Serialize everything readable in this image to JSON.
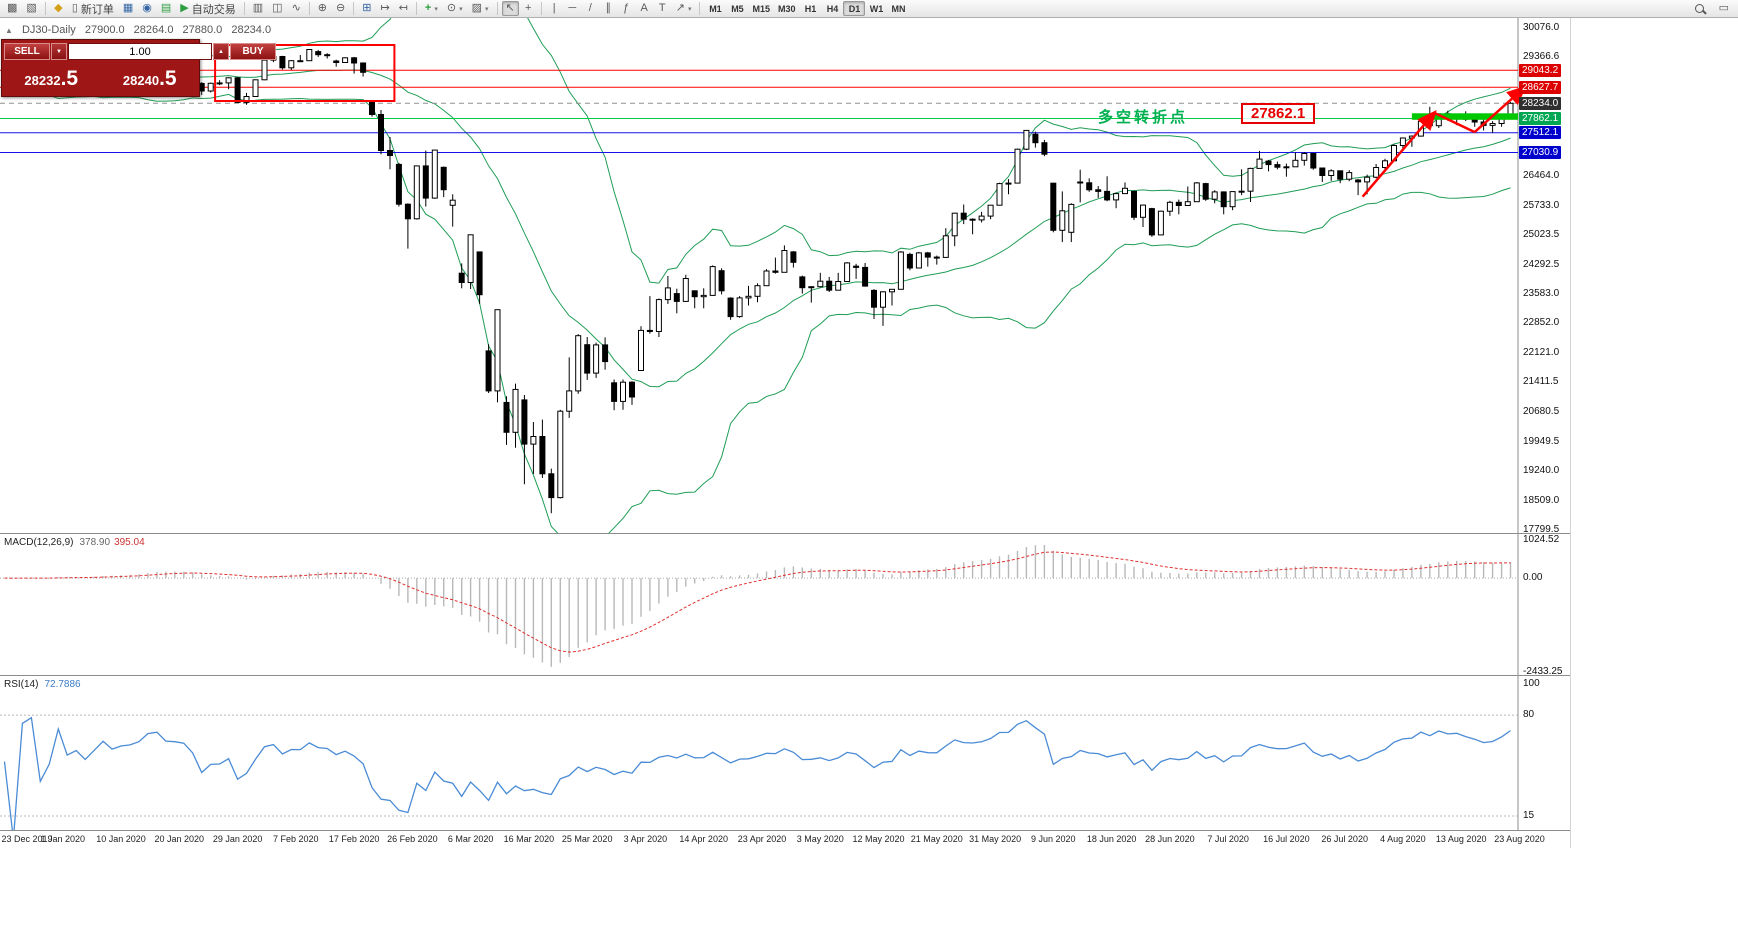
{
  "toolbar": {
    "new_order_label": "新订单",
    "auto_trading_label": "自动交易",
    "timeframes": [
      "M1",
      "M5",
      "M15",
      "M30",
      "H1",
      "H4",
      "D1",
      "W1",
      "MN"
    ],
    "active_timeframe": "D1"
  },
  "chart_header": {
    "collapse_glyph": "▲",
    "symbol": "DJ30-Daily",
    "open": "27900.0",
    "high": "28264.0",
    "low": "27880.0",
    "close": "28234.0"
  },
  "trade_widget": {
    "sell_label": "SELL",
    "buy_label": "BUY",
    "lot_value": "1.00",
    "sell_price_main": "28232",
    "sell_price_big": ".5",
    "buy_price_main": "28240",
    "buy_price_big": ".5"
  },
  "annotations": {
    "turning_point_label": "多空转折点",
    "turning_point_price": "27862.1"
  },
  "chart_data": [
    {
      "type": "candlestick",
      "symbol": "DJ30",
      "period": "Daily",
      "ylim": [
        17799.5,
        30076.0
      ],
      "y_ticks": [
        30076.0,
        29366.6,
        26464.0,
        25733.0,
        25023.5,
        24292.5,
        23583.0,
        22852.0,
        22121.0,
        21411.5,
        20680.5,
        19949.5,
        19240.0,
        18509.0,
        17799.5
      ],
      "x_labels": [
        "23 Dec 2019",
        "1 Jan 2020",
        "10 Jan 2020",
        "20 Jan 2020",
        "29 Jan 2020",
        "7 Feb 2020",
        "17 Feb 2020",
        "26 Feb 2020",
        "6 Mar 2020",
        "16 Mar 2020",
        "25 Mar 2020",
        "3 Apr 2020",
        "14 Apr 2020",
        "23 Apr 2020",
        "3 May 2020",
        "12 May 2020",
        "21 May 2020",
        "31 May 2020",
        "9 Jun 2020",
        "18 Jun 2020",
        "28 Jun 2020",
        "7 Jul 2020",
        "16 Jul 2020",
        "26 Jul 2020",
        "4 Aug 2020",
        "13 Aug 2020",
        "23 Aug 2020"
      ],
      "candles": [
        [
          28510,
          28580,
          28470,
          28551
        ],
        [
          28551,
          28575,
          28468,
          28515
        ],
        [
          28515,
          28640,
          28500,
          28621
        ],
        [
          28621,
          28700,
          28590,
          28645
        ],
        [
          28645,
          28662,
          28428,
          28462
        ],
        [
          28462,
          28562,
          28420,
          28538
        ],
        [
          28538,
          28890,
          28530,
          28869
        ],
        [
          28650,
          28720,
          28560,
          28635
        ],
        [
          28635,
          28712,
          28420,
          28703
        ],
        [
          28703,
          28730,
          28550,
          28584
        ],
        [
          28584,
          28770,
          28440,
          28745
        ],
        [
          28745,
          28980,
          28740,
          28957
        ],
        [
          28957,
          29005,
          28790,
          28824
        ],
        [
          28824,
          28920,
          28800,
          28907
        ],
        [
          28907,
          29010,
          28850,
          28939
        ],
        [
          28939,
          29060,
          28890,
          29030
        ],
        [
          29030,
          29300,
          29020,
          29297
        ],
        [
          29297,
          29380,
          29250,
          29348
        ],
        [
          29280,
          29320,
          29150,
          29196
        ],
        [
          29196,
          29280,
          29130,
          29186
        ],
        [
          29186,
          29230,
          29000,
          29160
        ],
        [
          29160,
          29230,
          28840,
          28990
        ],
        [
          28720,
          28750,
          28440,
          28536
        ],
        [
          28536,
          28740,
          28500,
          28723
        ],
        [
          28723,
          28800,
          28680,
          28734
        ],
        [
          28734,
          28870,
          28580,
          28859
        ],
        [
          28859,
          28880,
          28250,
          28256
        ],
        [
          28256,
          28490,
          28200,
          28400
        ],
        [
          28400,
          28820,
          28395,
          28808
        ],
        [
          28808,
          29310,
          28800,
          29291
        ],
        [
          29291,
          29390,
          29240,
          29380
        ],
        [
          29380,
          29395,
          29060,
          29103
        ],
        [
          29103,
          29290,
          29050,
          29277
        ],
        [
          29277,
          29415,
          29250,
          29276
        ],
        [
          29276,
          29560,
          29270,
          29551
        ],
        [
          29500,
          29540,
          29370,
          29423
        ],
        [
          29423,
          29460,
          29330,
          29398
        ],
        [
          29270,
          29300,
          29130,
          29232
        ],
        [
          29232,
          29360,
          29220,
          29348
        ],
        [
          29348,
          29370,
          28960,
          29220
        ],
        [
          29220,
          29235,
          28890,
          28992
        ],
        [
          28260,
          28285,
          27910,
          27961
        ],
        [
          27961,
          28070,
          26990,
          27081
        ],
        [
          27081,
          27410,
          26620,
          26958
        ],
        [
          26740,
          26780,
          25710,
          25767
        ],
        [
          25767,
          25790,
          24680,
          25409
        ],
        [
          25409,
          26710,
          25390,
          26703
        ],
        [
          26703,
          27080,
          25710,
          25917
        ],
        [
          25917,
          27100,
          25900,
          27091
        ],
        [
          26670,
          26690,
          25940,
          26121
        ],
        [
          25740,
          26010,
          25220,
          25865
        ],
        [
          24080,
          24320,
          23710,
          23851
        ],
        [
          23851,
          25020,
          23690,
          25018
        ],
        [
          24600,
          24610,
          23330,
          23553
        ],
        [
          22180,
          22340,
          21150,
          21201
        ],
        [
          21201,
          23190,
          20920,
          23186
        ],
        [
          20920,
          21070,
          19880,
          20188
        ],
        [
          20188,
          21380,
          19810,
          21237
        ],
        [
          20980,
          21100,
          18920,
          19899
        ],
        [
          19899,
          20440,
          19170,
          20087
        ],
        [
          20087,
          20500,
          19070,
          19174
        ],
        [
          19174,
          19300,
          18210,
          18592
        ],
        [
          18592,
          20740,
          18570,
          20705
        ],
        [
          20705,
          22020,
          20540,
          21200
        ],
        [
          21200,
          22590,
          21130,
          22552
        ],
        [
          22330,
          22520,
          21470,
          21637
        ],
        [
          21637,
          22380,
          21520,
          22327
        ],
        [
          22327,
          22510,
          21720,
          21917
        ],
        [
          21400,
          21480,
          20730,
          20944
        ],
        [
          20944,
          21480,
          20740,
          21413
        ],
        [
          21413,
          21440,
          20860,
          21053
        ],
        [
          21700,
          22780,
          21690,
          22680
        ],
        [
          22680,
          23520,
          22600,
          22654
        ],
        [
          22654,
          23460,
          22520,
          23434
        ],
        [
          23434,
          24010,
          23330,
          23719
        ],
        [
          23580,
          23700,
          23100,
          23390
        ],
        [
          23390,
          24040,
          23380,
          23950
        ],
        [
          23650,
          23660,
          23220,
          23504
        ],
        [
          23504,
          23710,
          23220,
          23537
        ],
        [
          23537,
          24270,
          23530,
          24242
        ],
        [
          24140,
          24200,
          23560,
          23650
        ],
        [
          23470,
          23490,
          22940,
          23018
        ],
        [
          23018,
          23520,
          22990,
          23476
        ],
        [
          23476,
          23770,
          23290,
          23515
        ],
        [
          23515,
          23830,
          23370,
          23775
        ],
        [
          23775,
          24180,
          23770,
          24134
        ],
        [
          24134,
          24460,
          24070,
          24102
        ],
        [
          24102,
          24760,
          24100,
          24634
        ],
        [
          24600,
          24620,
          24220,
          24346
        ],
        [
          23990,
          24020,
          23580,
          23724
        ],
        [
          23724,
          23760,
          23360,
          23750
        ],
        [
          23750,
          24090,
          23730,
          23883
        ],
        [
          23883,
          23990,
          23620,
          23665
        ],
        [
          23665,
          24090,
          23660,
          23876
        ],
        [
          23876,
          24350,
          23870,
          24331
        ],
        [
          24250,
          24310,
          23940,
          24222
        ],
        [
          24222,
          24330,
          23750,
          23765
        ],
        [
          23660,
          23690,
          22960,
          23248
        ],
        [
          23248,
          23640,
          22790,
          23625
        ],
        [
          23625,
          23690,
          23290,
          23685
        ],
        [
          23685,
          24620,
          23680,
          24597
        ],
        [
          24540,
          24580,
          24150,
          24207
        ],
        [
          24207,
          24600,
          24200,
          24576
        ],
        [
          24576,
          24600,
          24240,
          24474
        ],
        [
          24474,
          24510,
          24290,
          24465
        ],
        [
          24465,
          25180,
          24460,
          24995
        ],
        [
          24995,
          25560,
          24740,
          25548
        ],
        [
          25548,
          25760,
          25280,
          25401
        ],
        [
          25401,
          25420,
          25030,
          25383
        ],
        [
          25383,
          25580,
          25320,
          25475
        ],
        [
          25475,
          25750,
          25400,
          25743
        ],
        [
          25743,
          26290,
          25740,
          26270
        ],
        [
          26270,
          26380,
          26010,
          26282
        ],
        [
          26282,
          27130,
          26280,
          27111
        ],
        [
          27111,
          27580,
          27090,
          27572
        ],
        [
          27480,
          27540,
          27150,
          27272
        ],
        [
          27272,
          27340,
          26940,
          26990
        ],
        [
          26280,
          26290,
          25080,
          25128
        ],
        [
          25128,
          26080,
          24840,
          25605
        ],
        [
          25080,
          25790,
          24840,
          25763
        ],
        [
          26310,
          26610,
          25810,
          26290
        ],
        [
          26290,
          26400,
          26070,
          26120
        ],
        [
          26120,
          26210,
          25920,
          26080
        ],
        [
          26080,
          26450,
          25840,
          25871
        ],
        [
          25871,
          26050,
          25670,
          26025
        ],
        [
          26025,
          26300,
          26020,
          26156
        ],
        [
          26080,
          26100,
          25380,
          25446
        ],
        [
          25446,
          25760,
          25210,
          25746
        ],
        [
          25660,
          25680,
          24970,
          25016
        ],
        [
          25016,
          25610,
          25010,
          25596
        ],
        [
          25596,
          25850,
          25480,
          25813
        ],
        [
          25813,
          25880,
          25520,
          25735
        ],
        [
          25735,
          26200,
          25730,
          25827
        ],
        [
          25827,
          26310,
          25820,
          26287
        ],
        [
          26270,
          26290,
          25850,
          25890
        ],
        [
          25890,
          26110,
          25790,
          26067
        ],
        [
          26067,
          26080,
          25520,
          25706
        ],
        [
          25706,
          26080,
          25620,
          26075
        ],
        [
          26075,
          26620,
          25990,
          26086
        ],
        [
          26086,
          26660,
          25820,
          26643
        ],
        [
          26643,
          27070,
          26640,
          26870
        ],
        [
          26820,
          26850,
          26570,
          26735
        ],
        [
          26735,
          26810,
          26620,
          26672
        ],
        [
          26672,
          26760,
          26440,
          26681
        ],
        [
          26681,
          27030,
          26680,
          26840
        ],
        [
          26840,
          27040,
          26710,
          27006
        ],
        [
          27006,
          27020,
          26610,
          26652
        ],
        [
          26652,
          26660,
          26310,
          26470
        ],
        [
          26470,
          26620,
          26340,
          26584
        ],
        [
          26584,
          26590,
          26280,
          26379
        ],
        [
          26379,
          26600,
          26330,
          26539
        ],
        [
          26360,
          26380,
          25990,
          26313
        ],
        [
          26313,
          26490,
          26010,
          26428
        ],
        [
          26428,
          26750,
          26400,
          26664
        ],
        [
          26664,
          26880,
          26560,
          26828
        ],
        [
          26828,
          27230,
          26820,
          27202
        ],
        [
          27202,
          27400,
          27090,
          27387
        ],
        [
          27387,
          27450,
          27170,
          27433
        ],
        [
          27433,
          27800,
          27420,
          27791
        ],
        [
          27791,
          28150,
          27620,
          27686
        ],
        [
          27686,
          27980,
          27630,
          27977
        ],
        [
          27977,
          28050,
          27810,
          27897
        ],
        [
          27897,
          27950,
          27700,
          27931
        ],
        [
          27931,
          28040,
          27800,
          27845
        ],
        [
          27845,
          27940,
          27660,
          27778
        ],
        [
          27778,
          27920,
          27570,
          27693
        ],
        [
          27693,
          27800,
          27510,
          27740
        ],
        [
          27740,
          27950,
          27660,
          27930
        ],
        [
          27900,
          28264,
          27880,
          28234
        ]
      ],
      "bollinger": {
        "period": 20,
        "deviation": 2,
        "color": "#1f9d55"
      },
      "hlines": [
        {
          "price": 29043.2,
          "label": "29043.2",
          "color": "#ff0000",
          "badge_color": "#dd0000"
        },
        {
          "price": 28627.7,
          "label": "28627.7",
          "color": "#ff0000",
          "badge_color": "#dd0000"
        },
        {
          "price": 28234.0,
          "label": "28234.0",
          "color": "#909090",
          "badge_color": "#2f2f2f",
          "dashed": true
        },
        {
          "price": 27862.1,
          "label": "27862.1",
          "color": "#00cc44",
          "badge_color": "#00a651"
        },
        {
          "price": 27512.1,
          "label": "27512.1",
          "color": "#1414e6",
          "badge_color": "#0000cd"
        },
        {
          "price": 27030.9,
          "label": "27030.9",
          "color": "#1414e6",
          "badge_color": "#0000cd"
        }
      ],
      "shapes": {
        "rectangle": {
          "i1": 23.5,
          "i2": 43.5,
          "p1": 29660,
          "p2": 28290,
          "color": "#ff0000"
        },
        "support_band": {
          "i1": 157,
          "p1": 27990,
          "p2": 27830,
          "color": "#00c800"
        },
        "arrow_color": "#ff0000",
        "arrows": [
          {
            "from_i": 151.5,
            "from_p": 25950,
            "to_i": 159.5,
            "to_p": 28000,
            "head": true
          },
          {
            "from_i": 159.5,
            "from_p": 28000,
            "to_i": 164.0,
            "to_p": 27530,
            "head": false
          },
          {
            "from_i": 164.0,
            "from_p": 27530,
            "to_i": 169.5,
            "to_p": 28610,
            "head": true
          }
        ]
      }
    },
    {
      "type": "macd",
      "label": "MACD(12,26,9)",
      "macd_value": "378.90",
      "signal_value": "395.04",
      "params": {
        "fast": 12,
        "slow": 26,
        "signal": 9
      },
      "ylim": [
        -2550,
        1150
      ],
      "y_ticks": [
        1024.52,
        0,
        -2433.25
      ],
      "histogram_color": "#b8b8b8",
      "signal_color": "#e03030"
    },
    {
      "type": "rsi",
      "label": "RSI(14)",
      "period": 14,
      "value": "72.7886",
      "levels": [
        80,
        15
      ],
      "y_ticks": [
        100,
        80,
        15
      ],
      "line_color": "#4a8bd5",
      "level_color": "#b8b8b8"
    }
  ]
}
